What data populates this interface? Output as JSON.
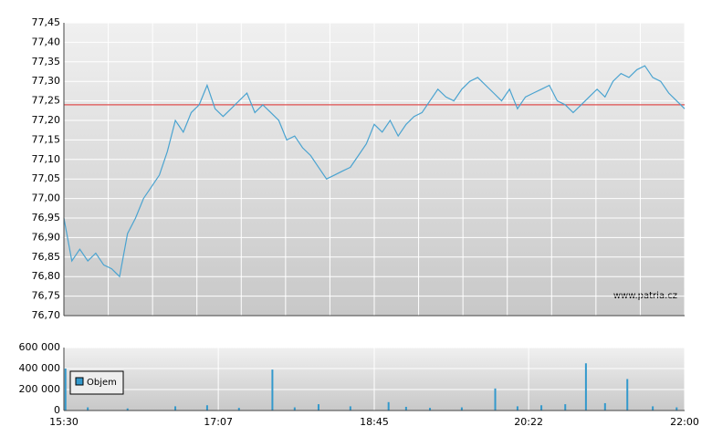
{
  "chart_data": [
    {
      "type": "line",
      "color": "#4aa3d0",
      "x": [
        "15:30",
        "15:35",
        "15:40",
        "15:45",
        "15:50",
        "15:55",
        "16:00",
        "16:05",
        "16:10",
        "16:15",
        "16:20",
        "16:25",
        "16:30",
        "16:35",
        "16:40",
        "16:45",
        "16:50",
        "16:55",
        "17:00",
        "17:05",
        "17:10",
        "17:15",
        "17:20",
        "17:25",
        "17:30",
        "17:35",
        "17:40",
        "17:45",
        "17:50",
        "17:55",
        "18:00",
        "18:05",
        "18:10",
        "18:15",
        "18:20",
        "18:25",
        "18:30",
        "18:35",
        "18:40",
        "18:45",
        "18:50",
        "18:55",
        "19:00",
        "19:05",
        "19:10",
        "19:15",
        "19:20",
        "19:25",
        "19:30",
        "19:35",
        "19:40",
        "19:45",
        "19:50",
        "19:55",
        "20:00",
        "20:05",
        "20:10",
        "20:15",
        "20:20",
        "20:25",
        "20:30",
        "20:35",
        "20:40",
        "20:45",
        "20:50",
        "20:55",
        "21:00",
        "21:05",
        "21:10",
        "21:15",
        "21:20",
        "21:25",
        "21:30",
        "21:35",
        "21:40",
        "21:45",
        "21:50",
        "21:55",
        "22:00"
      ],
      "values": [
        76.95,
        76.84,
        76.87,
        76.84,
        76.86,
        76.83,
        76.82,
        76.8,
        76.91,
        76.95,
        77.0,
        77.03,
        77.06,
        77.12,
        77.2,
        77.17,
        77.22,
        77.24,
        77.29,
        77.23,
        77.21,
        77.23,
        77.25,
        77.27,
        77.22,
        77.24,
        77.22,
        77.2,
        77.15,
        77.16,
        77.13,
        77.11,
        77.08,
        77.05,
        77.06,
        77.07,
        77.08,
        77.11,
        77.14,
        77.19,
        77.17,
        77.2,
        77.16,
        77.19,
        77.21,
        77.22,
        77.25,
        77.28,
        77.26,
        77.25,
        77.28,
        77.3,
        77.31,
        77.29,
        77.27,
        77.25,
        77.28,
        77.23,
        77.26,
        77.27,
        77.28,
        77.29,
        77.25,
        77.24,
        77.22,
        77.24,
        77.26,
        77.28,
        77.26,
        77.3,
        77.32,
        77.31,
        77.33,
        77.34,
        77.31,
        77.3,
        77.27,
        77.25,
        77.23
      ],
      "reference": 77.24,
      "reference_color": "#e05050",
      "xlim": [
        "15:30",
        "22:00"
      ],
      "ylim": [
        76.7,
        77.45
      ],
      "yticks": [
        {
          "value": 76.7,
          "label": "76,70"
        },
        {
          "value": 76.75,
          "label": "76,75"
        },
        {
          "value": 76.8,
          "label": "76,80"
        },
        {
          "value": 76.85,
          "label": "76,85"
        },
        {
          "value": 76.9,
          "label": "76,90"
        },
        {
          "value": 76.95,
          "label": "76,95"
        },
        {
          "value": 77.0,
          "label": "77,00"
        },
        {
          "value": 77.05,
          "label": "77,05"
        },
        {
          "value": 77.1,
          "label": "77,10"
        },
        {
          "value": 77.15,
          "label": "77,15"
        },
        {
          "value": 77.2,
          "label": "77,20"
        },
        {
          "value": 77.25,
          "label": "77,25"
        },
        {
          "value": 77.3,
          "label": "77,30"
        },
        {
          "value": 77.35,
          "label": "77,35"
        },
        {
          "value": 77.4,
          "label": "77,40"
        },
        {
          "value": 77.45,
          "label": "77,45"
        }
      ],
      "grid": true,
      "source": "www.patria.cz"
    },
    {
      "type": "bar",
      "x": [
        "15:31",
        "15:45",
        "16:10",
        "16:40",
        "17:00",
        "17:20",
        "17:41",
        "17:55",
        "18:10",
        "18:30",
        "18:54",
        "19:05",
        "19:20",
        "19:40",
        "20:01",
        "20:15",
        "20:30",
        "20:45",
        "20:58",
        "21:10",
        "21:24",
        "21:40",
        "21:55"
      ],
      "series": [
        {
          "name": "Objem",
          "color": "#3399cc",
          "values": [
            400000,
            30000,
            20000,
            40000,
            50000,
            25000,
            390000,
            30000,
            60000,
            40000,
            80000,
            35000,
            25000,
            30000,
            210000,
            40000,
            50000,
            60000,
            450000,
            70000,
            300000,
            40000,
            30000
          ]
        }
      ],
      "xlim": [
        "15:30",
        "22:00"
      ],
      "xticks": [
        "15:30",
        "17:07",
        "18:45",
        "20:22",
        "22:00"
      ],
      "ylim": [
        0,
        600000
      ],
      "yticks": [
        0,
        {
          "value": 200000,
          "label": "200 000"
        },
        {
          "value": 400000,
          "label": "400 000"
        },
        {
          "value": 600000,
          "label": "600 000"
        }
      ],
      "grid": true,
      "legend": "upper-left"
    }
  ]
}
